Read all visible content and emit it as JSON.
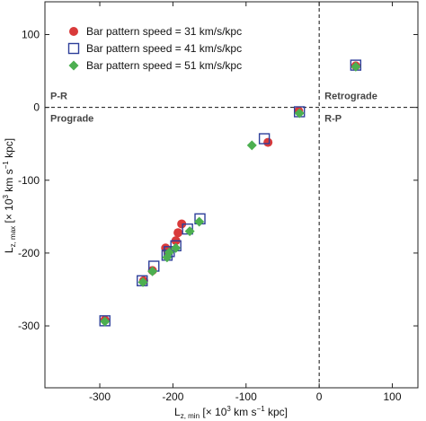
{
  "chart_data": {
    "type": "scatter",
    "xlabel": "L",
    "xlabel_sub": "z, min",
    "xlabel_unit_pre": " [× 10",
    "xlabel_unit_sup": "3",
    "xlabel_unit_mid": " km s",
    "xlabel_unit_sup2": "−1",
    "xlabel_unit_post": " kpc]",
    "ylabel": "L",
    "ylabel_sub": "z, max",
    "ylabel_unit_pre": " [× 10",
    "ylabel_unit_sup": "3",
    "ylabel_unit_mid": " km s",
    "ylabel_unit_sup2": "−1",
    "ylabel_unit_post": " kpc]",
    "xlim": [
      -375,
      135
    ],
    "ylim": [
      -385,
      145
    ],
    "xticks": [
      -300,
      -200,
      -100,
      0,
      100
    ],
    "yticks": [
      100,
      0,
      -100,
      -200,
      -300
    ],
    "xtick_labels": [
      "-300",
      "-200",
      "-100",
      "0",
      "100"
    ],
    "ytick_labels": [
      "100",
      "0",
      "-100",
      "-200",
      "-300"
    ],
    "grid": false,
    "legend_position": "top-left",
    "dashed_lines": {
      "x": 0,
      "y": 0
    },
    "region_labels": [
      {
        "text": "P-R",
        "quadrant": "top-left"
      },
      {
        "text": "Prograde",
        "quadrant": "bottom-left"
      },
      {
        "text": "Retrograde",
        "quadrant": "top-right"
      },
      {
        "text": "R-P",
        "quadrant": "bottom-right"
      }
    ],
    "series": [
      {
        "name": "Bar pattern speed = 31 km/s/kpc",
        "marker": "circle",
        "color": "#d93a3a",
        "points": [
          {
            "x": -70,
            "y": -48
          },
          {
            "x": -28,
            "y": -5
          },
          {
            "x": 50,
            "y": 57
          },
          {
            "x": -188,
            "y": -160
          },
          {
            "x": -193,
            "y": -172
          },
          {
            "x": -196,
            "y": -183
          },
          {
            "x": -210,
            "y": -193
          },
          {
            "x": -207,
            "y": -197
          },
          {
            "x": -228,
            "y": -224
          },
          {
            "x": -240,
            "y": -238
          },
          {
            "x": -293,
            "y": -292
          }
        ]
      },
      {
        "name": "Bar pattern speed = 41 km/s/kpc",
        "marker": "square-open",
        "color": "#2e3f9a",
        "points": [
          {
            "x": -75,
            "y": -43
          },
          {
            "x": -27,
            "y": -6
          },
          {
            "x": 50,
            "y": 58
          },
          {
            "x": -163,
            "y": -153
          },
          {
            "x": -180,
            "y": -167
          },
          {
            "x": -196,
            "y": -190
          },
          {
            "x": -205,
            "y": -198
          },
          {
            "x": -208,
            "y": -203
          },
          {
            "x": -226,
            "y": -218
          },
          {
            "x": -242,
            "y": -238
          },
          {
            "x": -293,
            "y": -293
          }
        ]
      },
      {
        "name": "Bar pattern speed = 51 km/s/kpc",
        "marker": "diamond",
        "color": "#4caf50",
        "points": [
          {
            "x": -92,
            "y": -52
          },
          {
            "x": -27,
            "y": -8
          },
          {
            "x": 50,
            "y": 56
          },
          {
            "x": -164,
            "y": -157
          },
          {
            "x": -177,
            "y": -170
          },
          {
            "x": -196,
            "y": -193
          },
          {
            "x": -205,
            "y": -199
          },
          {
            "x": -208,
            "y": -206
          },
          {
            "x": -228,
            "y": -225
          },
          {
            "x": -241,
            "y": -240
          },
          {
            "x": -293,
            "y": -294
          }
        ]
      }
    ]
  }
}
